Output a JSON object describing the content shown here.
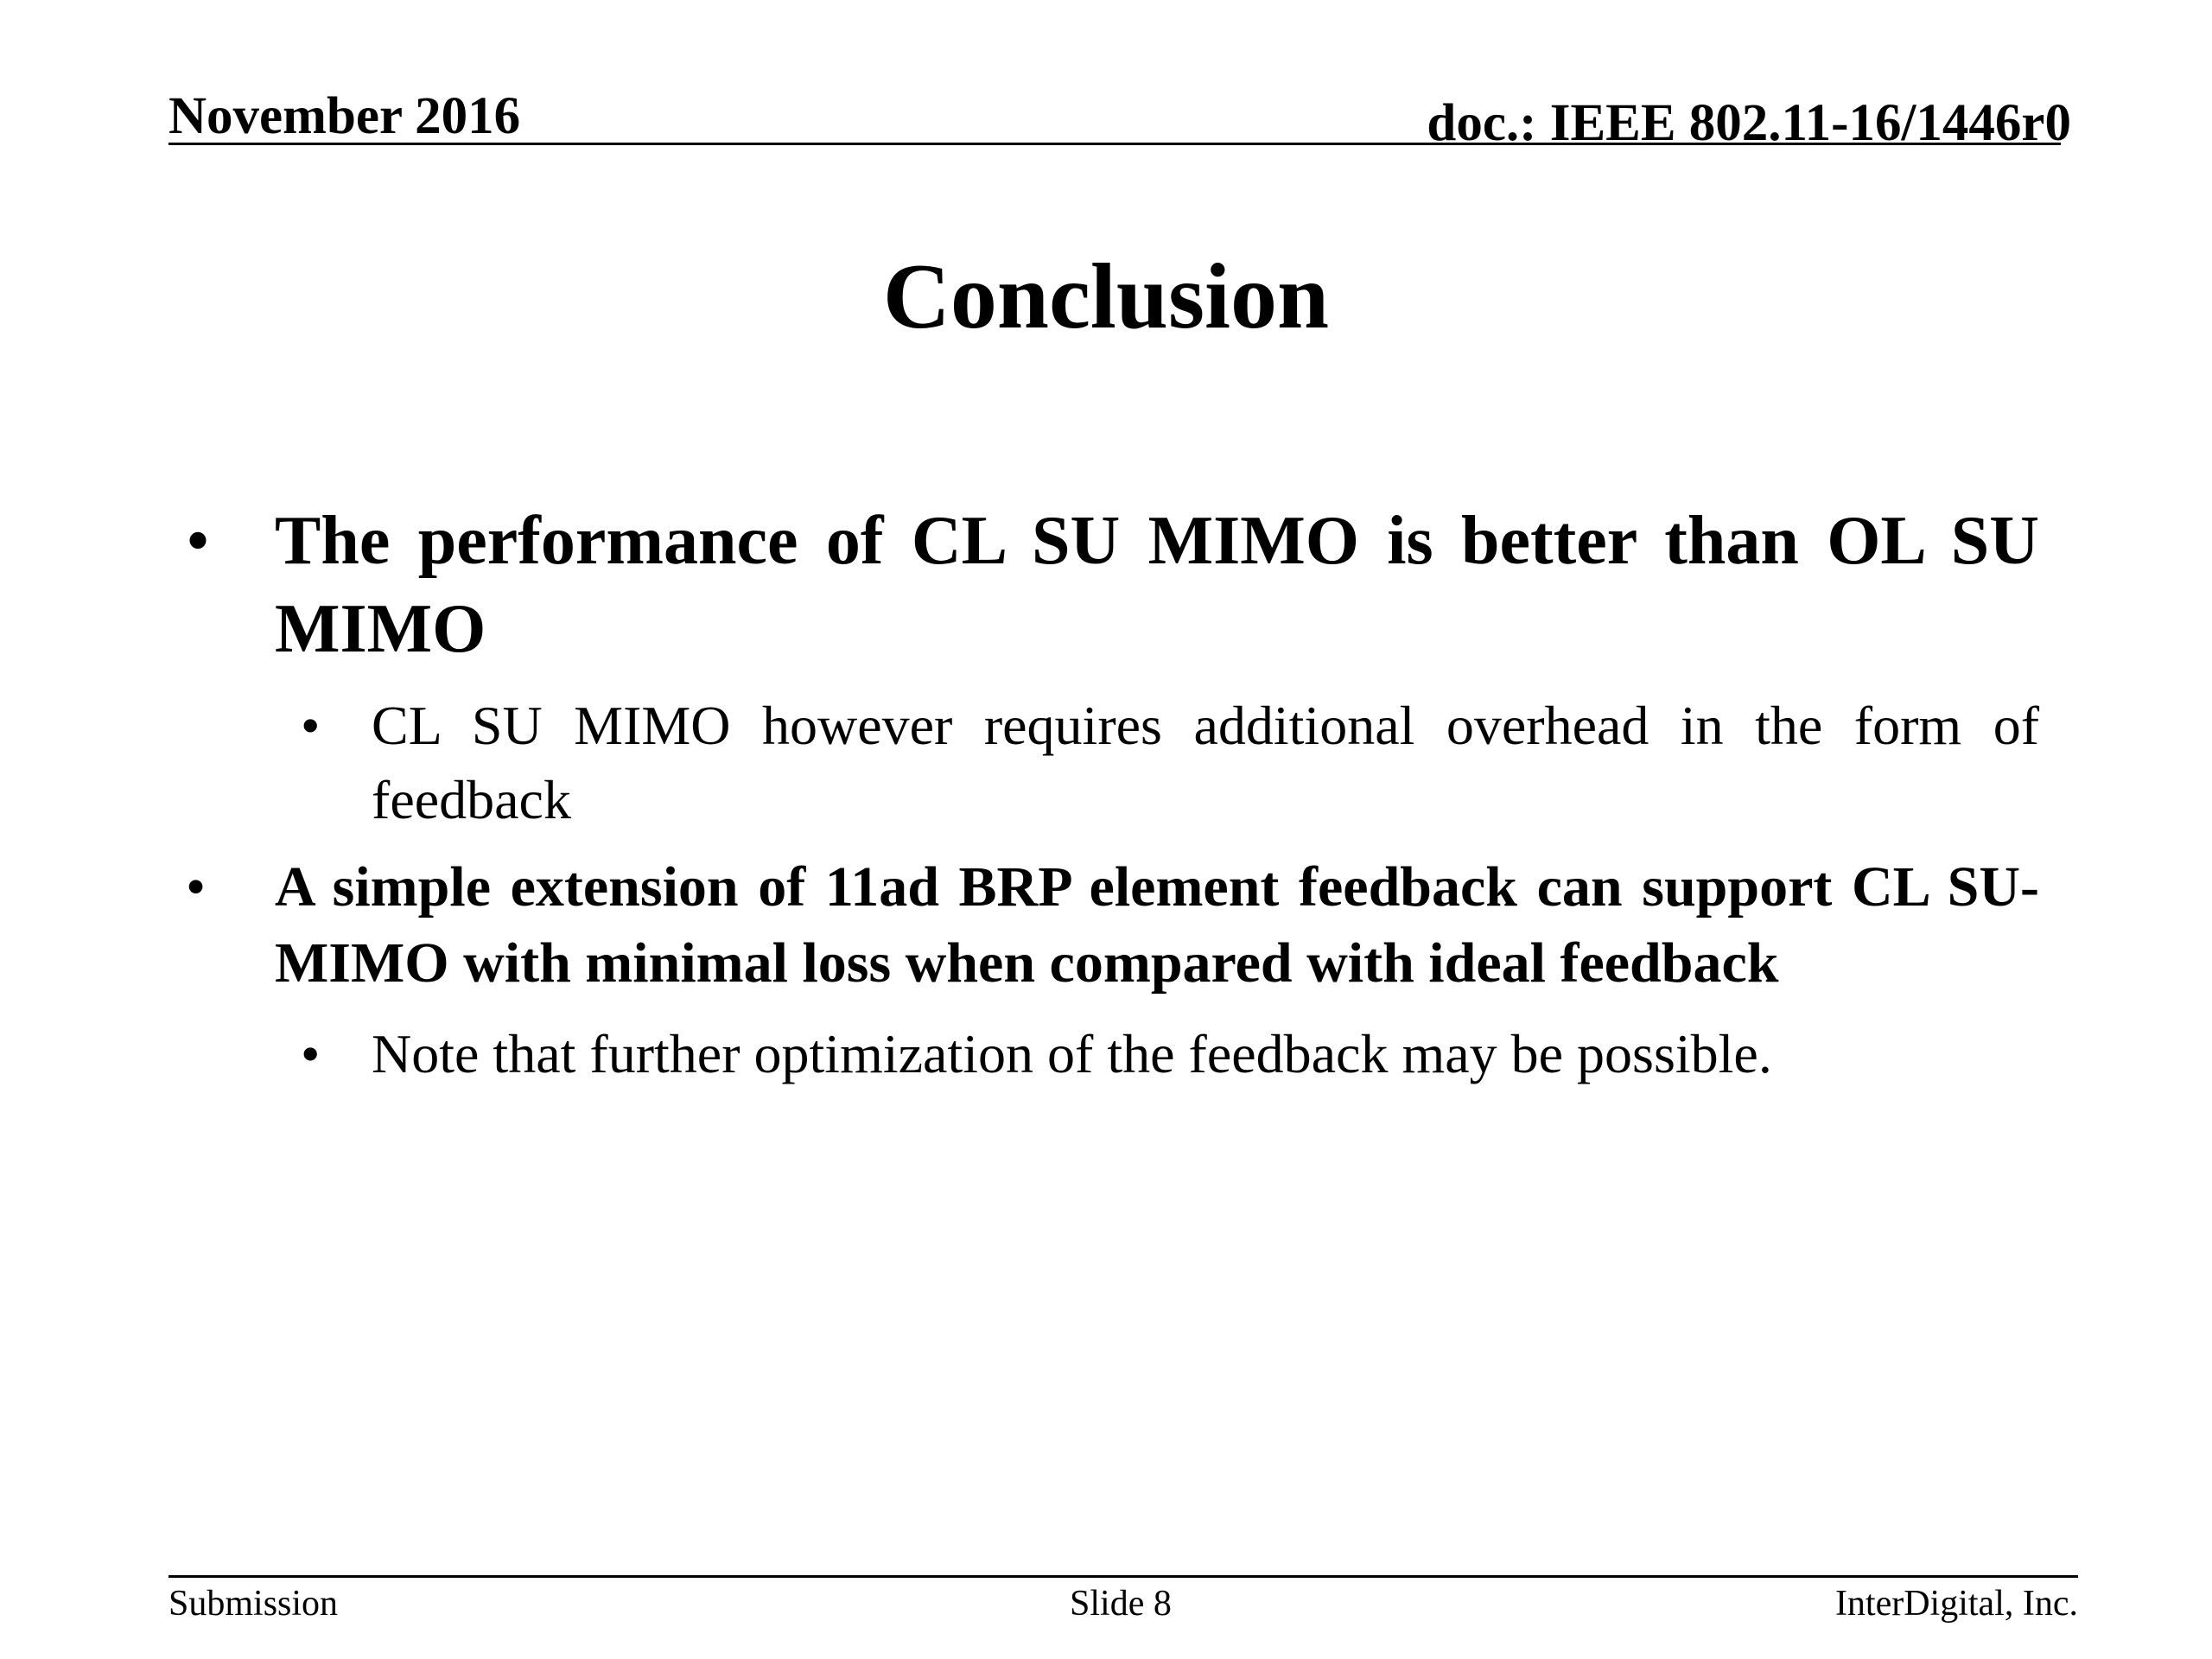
{
  "header": {
    "date": "November 2016",
    "doc_id": "doc.: IEEE 802.11-16/1446r0"
  },
  "slide": {
    "title": "Conclusion",
    "bullets": [
      {
        "text": "The performance of CL SU MIMO is better than OL SU MIMO",
        "sub": [
          "CL SU MIMO however requires additional overhead in the form of feedback"
        ]
      },
      {
        "text": "A simple extension of 11ad BRP element feedback can support CL SU-MIMO with minimal loss when compared with ideal feedback",
        "sub": [
          "Note that further optimization of the feedback may be possible."
        ]
      }
    ],
    "bullet_glyph": "•"
  },
  "footer": {
    "left": "Submission",
    "center": "Slide 8",
    "right": "InterDigital, Inc."
  }
}
